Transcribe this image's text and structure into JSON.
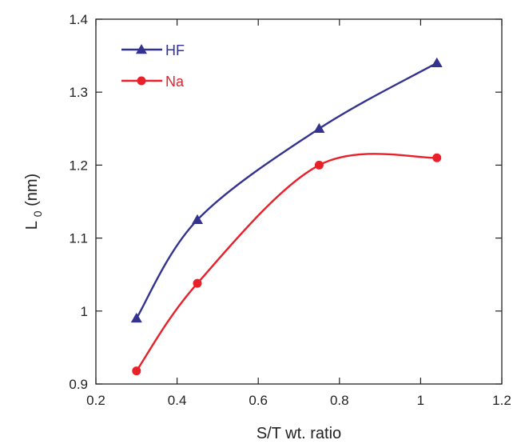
{
  "chart_data": {
    "type": "line",
    "xlabel": "S/T wt. ratio",
    "ylabel": {
      "main": "L",
      "sub": "0",
      "unit": " (nm)"
    },
    "xlim": [
      0.2,
      1.2
    ],
    "ylim": [
      0.9,
      1.4
    ],
    "xticks": [
      0.2,
      0.4,
      0.6,
      0.8,
      1,
      1.2
    ],
    "yticks": [
      0.9,
      1,
      1.1,
      1.2,
      1.3,
      1.4
    ],
    "xtick_labels": [
      "0.2",
      "0.4",
      "0.6",
      "0.8",
      "1",
      "1.2"
    ],
    "ytick_labels": [
      "0.9",
      "1",
      "1.1",
      "1.2",
      "1.3",
      "1.4"
    ],
    "grid": false,
    "legend_position": "top-left",
    "series": [
      {
        "name": "HF",
        "color": "#33338f",
        "marker": "triangle",
        "x": [
          0.3,
          0.45,
          0.75,
          1.04
        ],
        "y": [
          0.99,
          1.125,
          1.25,
          1.34
        ]
      },
      {
        "name": "Na",
        "color": "#e8202a",
        "marker": "circle",
        "x": [
          0.3,
          0.45,
          0.75,
          1.04
        ],
        "y": [
          0.918,
          1.038,
          1.2,
          1.21
        ]
      }
    ]
  }
}
